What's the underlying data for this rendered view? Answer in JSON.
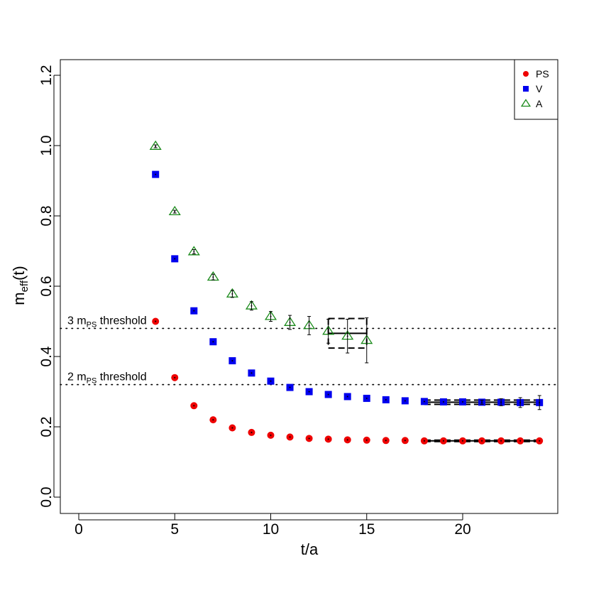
{
  "chart_data": {
    "type": "scatter",
    "xlabel": "t/a",
    "ylabel_main": "m",
    "ylabel_sub": "eff",
    "ylabel_tail": "(t)",
    "xlim": [
      -1,
      25
    ],
    "ylim": [
      -0.05,
      1.25
    ],
    "xticks": [
      0,
      5,
      10,
      15,
      20
    ],
    "yticks": [
      0.0,
      0.2,
      0.4,
      0.6,
      0.8,
      1.0,
      1.2
    ],
    "xtick_labels": [
      "0",
      "5",
      "10",
      "15",
      "20"
    ],
    "ytick_labels": [
      "0.0",
      "0.2",
      "0.4",
      "0.6",
      "0.8",
      "1.0",
      "1.2"
    ],
    "legend": {
      "position": "top-right",
      "entries": [
        {
          "name": "PS",
          "marker": "circle",
          "color": "#ee0000"
        },
        {
          "name": "V",
          "marker": "square",
          "color": "#0000ee"
        },
        {
          "name": "A",
          "marker": "triangle-open",
          "color": "#1a8a1a"
        }
      ]
    },
    "thresholds": [
      {
        "value": 0.48,
        "pre": "3 m",
        "sub": "PS",
        "post": " threshold"
      },
      {
        "value": 0.32,
        "pre": "2 m",
        "sub": "PS",
        "post": " threshold"
      }
    ],
    "series": [
      {
        "name": "PS",
        "marker": "circle",
        "color": "#ee0000",
        "x": [
          4,
          5,
          6,
          7,
          8,
          9,
          10,
          11,
          12,
          13,
          14,
          15,
          16,
          17,
          18,
          19,
          20,
          21,
          22,
          23,
          24
        ],
        "y": [
          0.5,
          0.34,
          0.26,
          0.22,
          0.197,
          0.184,
          0.176,
          0.171,
          0.167,
          0.165,
          0.163,
          0.162,
          0.161,
          0.161,
          0.16,
          0.16,
          0.16,
          0.16,
          0.16,
          0.16,
          0.16
        ],
        "err": [
          0,
          0,
          0,
          0,
          0,
          0,
          0,
          0,
          0,
          0,
          0,
          0,
          0,
          0,
          0,
          0,
          0,
          0,
          0,
          0,
          0
        ]
      },
      {
        "name": "V",
        "marker": "square",
        "color": "#0000ee",
        "x": [
          4,
          5,
          6,
          7,
          8,
          9,
          10,
          11,
          12,
          13,
          14,
          15,
          16,
          17,
          18,
          19,
          20,
          21,
          22,
          23,
          24
        ],
        "y": [
          0.918,
          0.678,
          0.53,
          0.442,
          0.388,
          0.353,
          0.33,
          0.312,
          0.3,
          0.292,
          0.286,
          0.281,
          0.277,
          0.274,
          0.272,
          0.271,
          0.271,
          0.27,
          0.27,
          0.269,
          0.269
        ],
        "err": [
          0,
          0,
          0,
          0,
          0,
          0,
          0,
          0,
          0,
          0,
          0,
          0,
          0,
          0,
          0,
          0,
          0,
          0.006,
          0.01,
          0.014,
          0.02
        ]
      },
      {
        "name": "A",
        "marker": "triangle-open",
        "color": "#1a8a1a",
        "x": [
          4,
          5,
          6,
          7,
          8,
          9,
          10,
          11,
          12,
          13,
          14,
          15
        ],
        "y": [
          0.998,
          0.812,
          0.698,
          0.626,
          0.578,
          0.544,
          0.514,
          0.497,
          0.488,
          0.472,
          0.458,
          0.446
        ],
        "err": [
          0.004,
          0.004,
          0.006,
          0.008,
          0.01,
          0.012,
          0.014,
          0.02,
          0.026,
          0.034,
          0.048,
          0.064
        ]
      }
    ],
    "fits": [
      {
        "x": [
          13,
          15
        ],
        "value": 0.466,
        "band": [
          0.424,
          0.508
        ]
      },
      {
        "x": [
          18,
          24
        ],
        "value": 0.27,
        "band": [
          0.264,
          0.276
        ]
      },
      {
        "x": [
          18,
          24
        ],
        "value": 0.16,
        "band": [
          0.158,
          0.162
        ]
      }
    ]
  }
}
